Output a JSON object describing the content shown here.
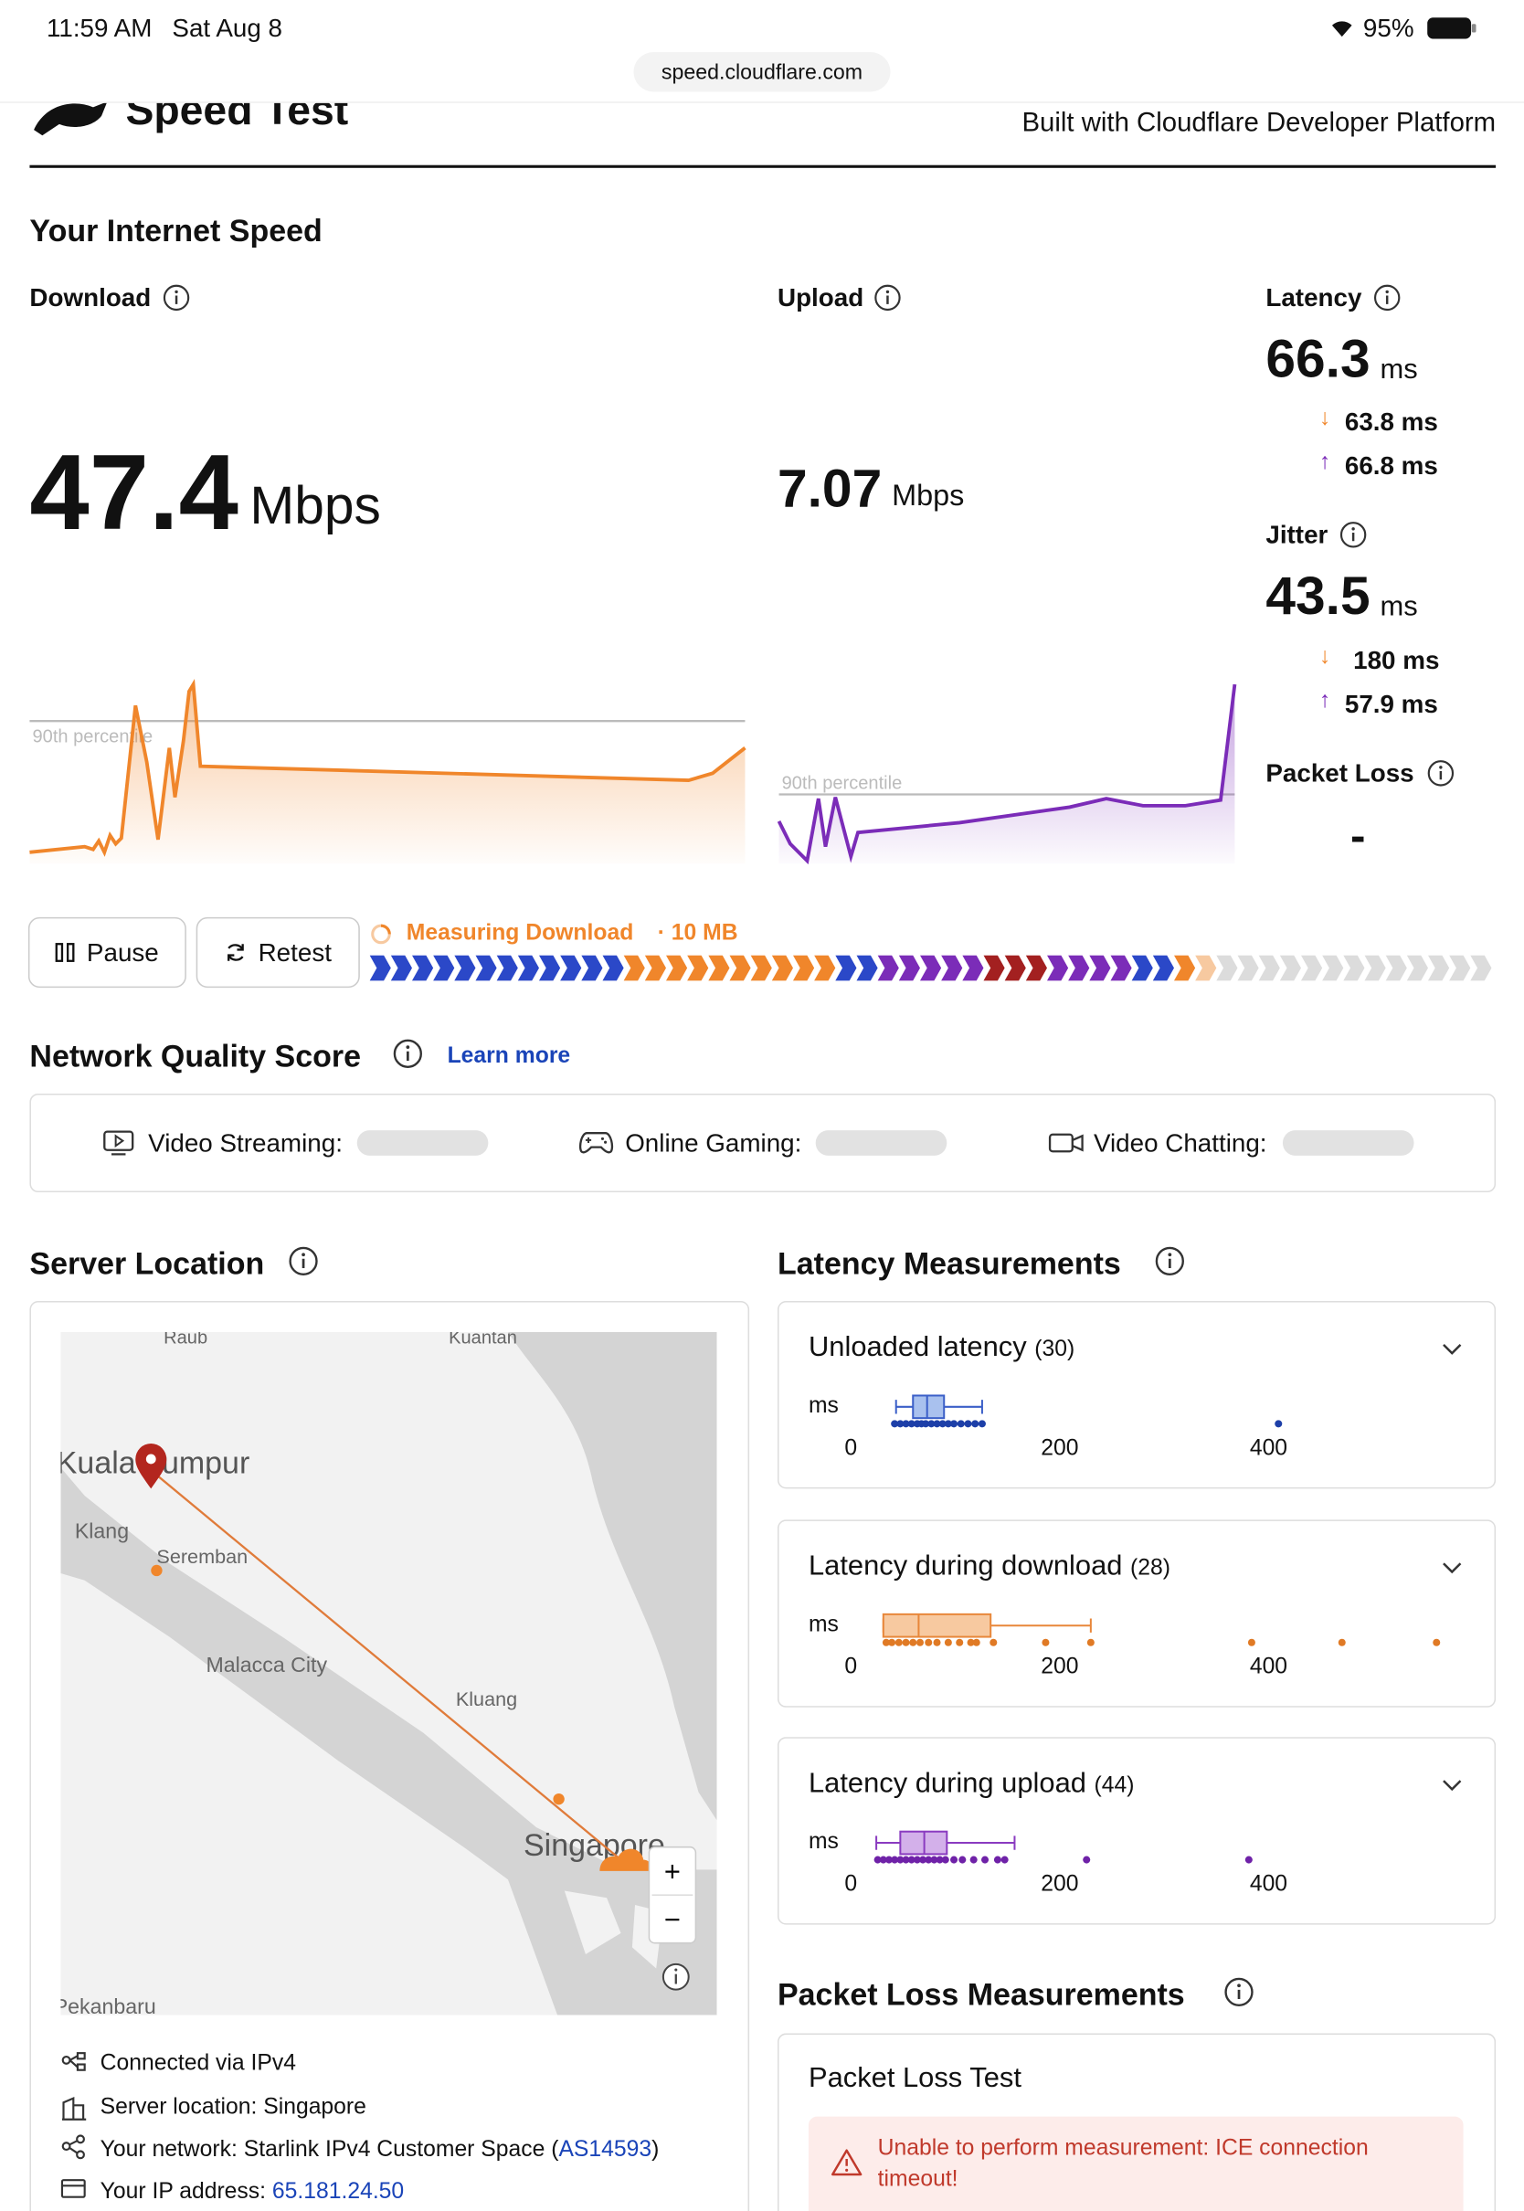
{
  "status_bar": {
    "time": "11:59 AM",
    "date": "Sat Aug 8",
    "battery": "95%",
    "url": "speed.cloudflare.com"
  },
  "header": {
    "title": "Speed Test",
    "tagline": "Built with Cloudflare Developer Platform"
  },
  "speed": {
    "heading": "Your Internet Speed",
    "download": {
      "label": "Download",
      "value": "47.4",
      "unit": "Mbps",
      "percentile": "90th percentile"
    },
    "upload": {
      "label": "Upload",
      "value": "7.07",
      "unit": "Mbps",
      "percentile": "90th percentile"
    },
    "latency": {
      "label": "Latency",
      "value": "66.3",
      "unit": "ms",
      "down": "63.8 ms",
      "up": "66.8 ms"
    },
    "jitter": {
      "label": "Jitter",
      "value": "43.5",
      "unit": "ms",
      "down": "180 ms",
      "up": "57.9 ms"
    },
    "packet_loss": {
      "label": "Packet Loss",
      "value": "-"
    }
  },
  "controls": {
    "pause": "Pause",
    "retest": "Retest",
    "status": "Measuring Download",
    "size": "· 10 MB"
  },
  "quality": {
    "heading": "Network Quality Score",
    "link": "Learn more",
    "items": [
      "Video Streaming:",
      "Online Gaming:",
      "Video Chatting:"
    ]
  },
  "server": {
    "heading": "Server Location",
    "map_labels": [
      "Raub",
      "Kuantan",
      "Kuala Lumpur",
      "Klang",
      "Seremban",
      "Malacca City",
      "Kluang",
      "Singapore",
      "Pekanbaru"
    ],
    "zoom": [
      "+",
      "−"
    ],
    "rows": [
      {
        "label": "Connected via",
        "value": "IPv4"
      },
      {
        "label": "Server location:",
        "value": "Singapore"
      },
      {
        "label": "Your network:",
        "value": "Starlink IPv4 Customer Space (",
        "link": "AS14593",
        "end": ")"
      },
      {
        "label": "Your IP address:",
        "link": "65.181.24.50"
      }
    ]
  },
  "latency_measurements": {
    "heading": "Latency Measurements",
    "unit": "ms",
    "axis_ticks": [
      0,
      200,
      400
    ],
    "cards": [
      {
        "title": "Unloaded latency",
        "count": "(30)"
      },
      {
        "title": "Latency during download",
        "count": "(28)"
      },
      {
        "title": "Latency during upload",
        "count": "(44)"
      }
    ]
  },
  "packet_loss_measurements": {
    "heading": "Packet Loss Measurements",
    "card_title": "Packet Loss Test",
    "error": "Unable to perform measurement: ICE connection timeout!"
  }
}
